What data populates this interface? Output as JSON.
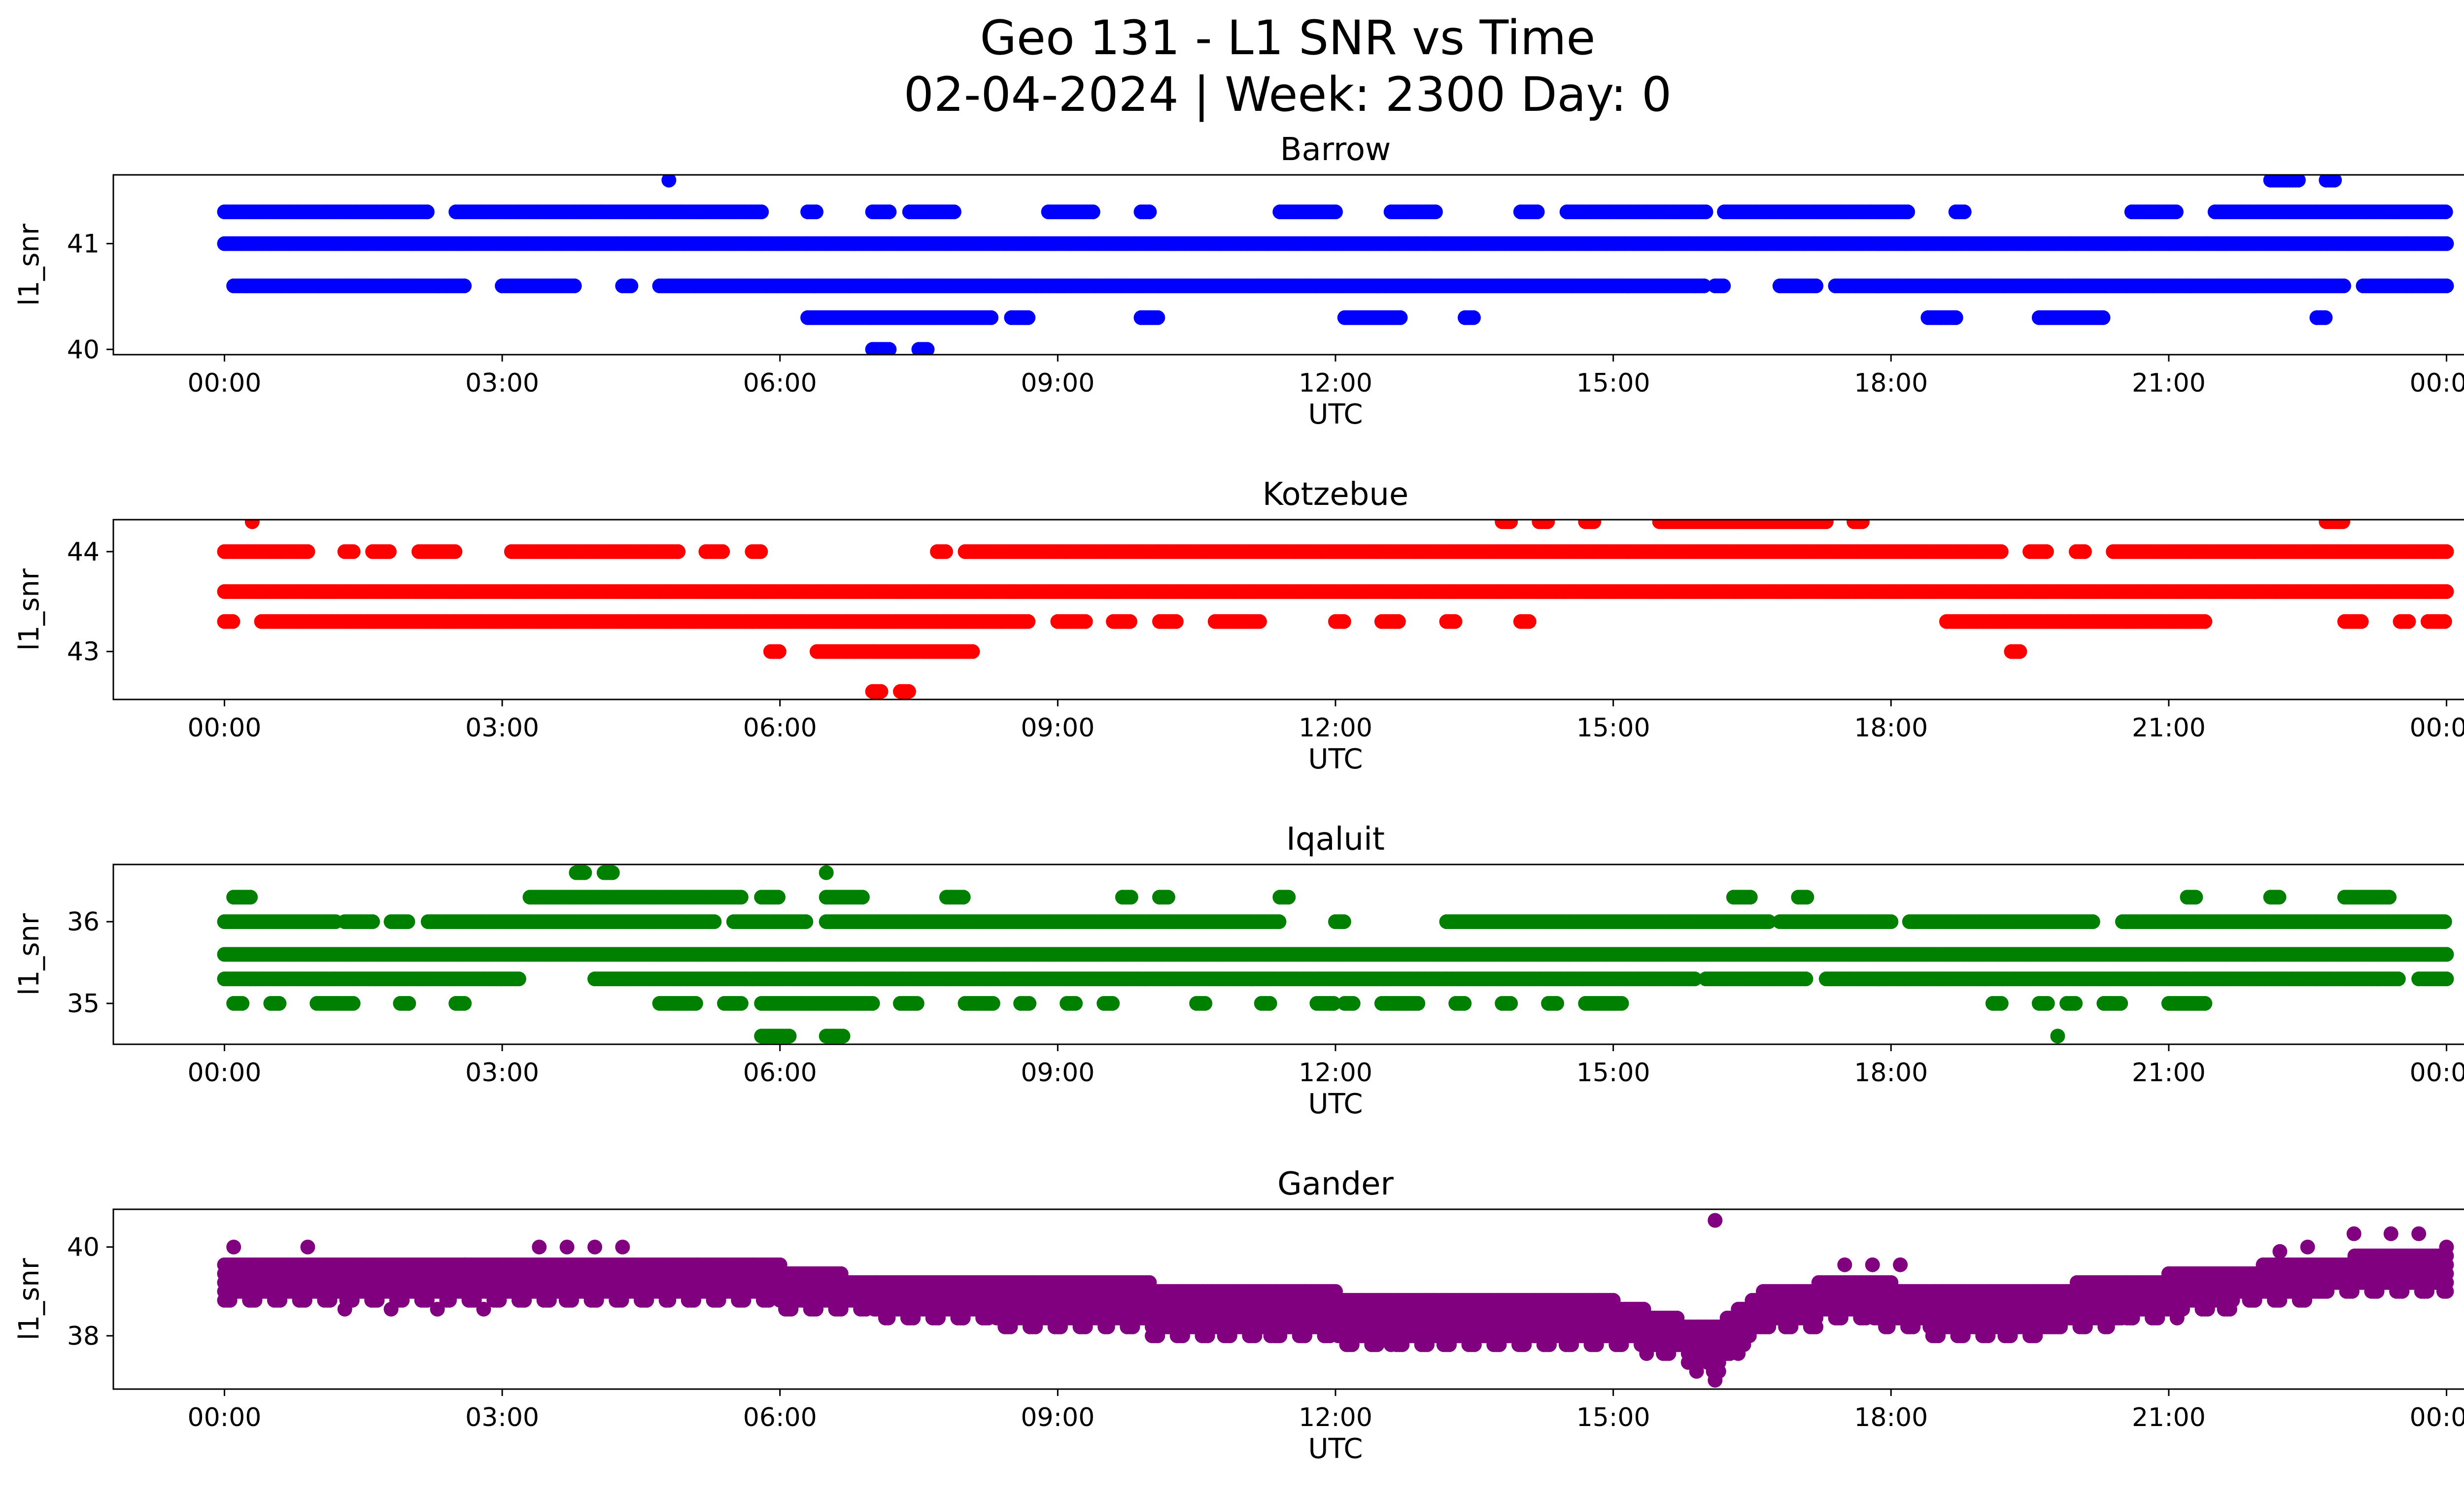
{
  "figure": {
    "title_line1": "Geo 131 - L1 SNR vs Time",
    "title_line2": "02-04-2024 | Week: 2300 Day: 0"
  },
  "chart_data": [
    {
      "type": "scatter",
      "title": "Barrow",
      "xlabel": "UTC",
      "ylabel": "l1_snr",
      "color": "#0000ff",
      "x_unit": "hours UTC",
      "xlim": [
        -1.2,
        25.2
      ],
      "ylim": [
        39.95,
        41.65
      ],
      "xticks": [
        "00:00",
        "03:00",
        "06:00",
        "09:00",
        "12:00",
        "15:00",
        "18:00",
        "21:00",
        "00:00"
      ],
      "yticks": [
        40,
        41
      ],
      "levels": [
        {
          "y": 41.0,
          "segments": [
            [
              0.0,
              24.0
            ]
          ]
        },
        {
          "y": 41.3,
          "segments": [
            [
              0.0,
              2.2
            ],
            [
              2.5,
              5.8
            ],
            [
              6.3,
              6.4
            ],
            [
              7.0,
              7.2
            ],
            [
              7.4,
              7.9
            ],
            [
              8.9,
              9.4
            ],
            [
              9.9,
              10.0
            ],
            [
              11.4,
              12.0
            ],
            [
              12.6,
              13.1
            ],
            [
              14.0,
              14.2
            ],
            [
              14.5,
              16.0
            ],
            [
              16.2,
              18.2
            ],
            [
              18.7,
              18.8
            ],
            [
              20.6,
              21.1
            ],
            [
              21.5,
              24.0
            ]
          ]
        },
        {
          "y": 40.6,
          "segments": [
            [
              0.1,
              2.6
            ],
            [
              3.0,
              3.8
            ],
            [
              4.3,
              4.4
            ],
            [
              4.7,
              16.0
            ],
            [
              16.1,
              16.2
            ],
            [
              16.8,
              17.2
            ],
            [
              17.4,
              22.9
            ],
            [
              23.1,
              24.0
            ]
          ]
        },
        {
          "y": 40.3,
          "segments": [
            [
              6.3,
              8.3
            ],
            [
              8.5,
              8.7
            ],
            [
              9.9,
              10.1
            ],
            [
              12.1,
              12.7
            ],
            [
              13.4,
              13.5
            ],
            [
              18.4,
              18.7
            ],
            [
              19.6,
              20.3
            ],
            [
              22.6,
              22.7
            ]
          ]
        },
        {
          "y": 40.0,
          "segments": [
            [
              7.0,
              7.2
            ],
            [
              7.5,
              7.6
            ]
          ]
        },
        {
          "y": 41.6,
          "segments": [
            [
              4.8,
              4.8
            ],
            [
              22.1,
              22.4
            ],
            [
              22.7,
              22.8
            ]
          ]
        }
      ]
    },
    {
      "type": "scatter",
      "title": "Kotzebue",
      "xlabel": "UTC",
      "ylabel": "l1_snr",
      "color": "#ff0000",
      "x_unit": "hours UTC",
      "xlim": [
        -1.2,
        25.2
      ],
      "ylim": [
        42.52,
        44.32
      ],
      "xticks": [
        "00:00",
        "03:00",
        "06:00",
        "09:00",
        "12:00",
        "15:00",
        "18:00",
        "21:00",
        "00:00"
      ],
      "yticks": [
        43,
        44
      ],
      "levels": [
        {
          "y": 43.6,
          "segments": [
            [
              0.0,
              24.0
            ]
          ]
        },
        {
          "y": 44.0,
          "segments": [
            [
              0.0,
              0.9
            ],
            [
              1.3,
              1.4
            ],
            [
              1.6,
              1.8
            ],
            [
              2.1,
              2.5
            ],
            [
              3.1,
              4.9
            ],
            [
              5.2,
              5.4
            ],
            [
              5.7,
              5.8
            ],
            [
              7.7,
              7.8
            ],
            [
              8.0,
              19.2
            ],
            [
              19.5,
              19.7
            ],
            [
              20.0,
              20.1
            ],
            [
              20.4,
              24.0
            ]
          ]
        },
        {
          "y": 43.3,
          "segments": [
            [
              0.0,
              0.1
            ],
            [
              0.4,
              8.7
            ],
            [
              9.0,
              9.3
            ],
            [
              9.6,
              9.8
            ],
            [
              10.1,
              10.3
            ],
            [
              10.7,
              11.2
            ],
            [
              12.0,
              12.1
            ],
            [
              12.5,
              12.7
            ],
            [
              13.2,
              13.3
            ],
            [
              14.0,
              14.1
            ],
            [
              18.6,
              21.4
            ],
            [
              22.9,
              23.1
            ],
            [
              23.5,
              23.6
            ],
            [
              23.8,
              24.0
            ]
          ]
        },
        {
          "y": 43.0,
          "segments": [
            [
              5.9,
              6.0
            ],
            [
              6.4,
              8.1
            ],
            [
              19.3,
              19.4
            ]
          ]
        },
        {
          "y": 42.6,
          "segments": [
            [
              7.0,
              7.1
            ],
            [
              7.3,
              7.4
            ]
          ]
        },
        {
          "y": 44.3,
          "segments": [
            [
              0.3,
              0.3
            ],
            [
              13.8,
              13.9
            ],
            [
              14.2,
              14.3
            ],
            [
              14.7,
              14.8
            ],
            [
              15.5,
              17.3
            ],
            [
              17.6,
              17.7
            ],
            [
              22.7,
              22.9
            ]
          ]
        }
      ]
    },
    {
      "type": "scatter",
      "title": "Iqaluit",
      "xlabel": "UTC",
      "ylabel": "l1_snr",
      "color": "#008000",
      "x_unit": "hours UTC",
      "xlim": [
        -1.2,
        25.2
      ],
      "ylim": [
        34.5,
        36.7
      ],
      "xticks": [
        "00:00",
        "03:00",
        "06:00",
        "09:00",
        "12:00",
        "15:00",
        "18:00",
        "21:00",
        "00:00"
      ],
      "yticks": [
        35,
        36
      ],
      "levels": [
        {
          "y": 35.6,
          "segments": [
            [
              0.0,
              24.0
            ]
          ]
        },
        {
          "y": 36.0,
          "segments": [
            [
              0.0,
              1.2
            ],
            [
              1.3,
              1.6
            ],
            [
              1.8,
              2.0
            ],
            [
              2.2,
              5.3
            ],
            [
              5.5,
              6.3
            ],
            [
              6.5,
              11.4
            ],
            [
              12.0,
              12.1
            ],
            [
              13.2,
              16.7
            ],
            [
              16.8,
              18.0
            ],
            [
              18.2,
              20.2
            ],
            [
              20.5,
              24.0
            ]
          ]
        },
        {
          "y": 35.3,
          "segments": [
            [
              0.0,
              3.2
            ],
            [
              4.0,
              15.9
            ],
            [
              16.0,
              17.1
            ],
            [
              17.3,
              23.5
            ],
            [
              23.7,
              24.0
            ]
          ]
        },
        {
          "y": 35.0,
          "segments": [
            [
              0.1,
              0.2
            ],
            [
              0.5,
              0.6
            ],
            [
              1.0,
              1.4
            ],
            [
              1.9,
              2.0
            ],
            [
              2.5,
              2.6
            ],
            [
              4.7,
              5.1
            ],
            [
              5.4,
              5.6
            ],
            [
              5.8,
              7.0
            ],
            [
              7.3,
              7.5
            ],
            [
              8.0,
              8.3
            ],
            [
              8.6,
              8.7
            ],
            [
              9.1,
              9.2
            ],
            [
              9.5,
              9.6
            ],
            [
              10.5,
              10.6
            ],
            [
              11.2,
              11.3
            ],
            [
              11.8,
              12.0
            ],
            [
              12.1,
              12.2
            ],
            [
              12.5,
              12.9
            ],
            [
              13.3,
              13.4
            ],
            [
              13.8,
              13.9
            ],
            [
              14.3,
              14.4
            ],
            [
              14.7,
              15.1
            ],
            [
              19.1,
              19.2
            ],
            [
              19.6,
              19.7
            ],
            [
              19.9,
              20.0
            ],
            [
              20.3,
              20.5
            ],
            [
              21.0,
              21.4
            ]
          ]
        },
        {
          "y": 34.6,
          "segments": [
            [
              5.8,
              6.1
            ],
            [
              6.5,
              6.7
            ],
            [
              19.8,
              19.8
            ]
          ]
        },
        {
          "y": 36.3,
          "segments": [
            [
              0.1,
              0.3
            ],
            [
              3.3,
              5.6
            ],
            [
              5.8,
              6.0
            ],
            [
              6.5,
              6.9
            ],
            [
              7.8,
              8.0
            ],
            [
              9.7,
              9.8
            ],
            [
              10.1,
              10.2
            ],
            [
              11.4,
              11.5
            ],
            [
              16.3,
              16.5
            ],
            [
              17.0,
              17.1
            ],
            [
              21.2,
              21.3
            ],
            [
              22.1,
              22.2
            ],
            [
              22.9,
              23.4
            ]
          ]
        },
        {
          "y": 36.6,
          "segments": [
            [
              3.8,
              3.9
            ],
            [
              4.1,
              4.2
            ],
            [
              6.5,
              6.5
            ]
          ]
        }
      ]
    },
    {
      "type": "scatter",
      "title": "Gander",
      "xlabel": "UTC",
      "ylabel": "l1_snr",
      "color": "#800080",
      "x_unit": "hours UTC",
      "xlim": [
        -1.2,
        25.2
      ],
      "ylim": [
        36.8,
        40.85
      ],
      "xticks": [
        "00:00",
        "03:00",
        "06:00",
        "09:00",
        "12:00",
        "15:00",
        "18:00",
        "21:00",
        "00:00"
      ],
      "yticks": [
        38,
        40
      ],
      "band": {
        "profile": [
          [
            0.0,
            39.0,
            39.6
          ],
          [
            3.0,
            39.1,
            39.7
          ],
          [
            6.0,
            38.9,
            39.6
          ],
          [
            7.0,
            38.7,
            39.3
          ],
          [
            9.0,
            38.4,
            39.3
          ],
          [
            12.0,
            38.1,
            39.0
          ],
          [
            13.5,
            38.0,
            38.8
          ],
          [
            15.0,
            38.0,
            38.8
          ],
          [
            15.7,
            37.8,
            38.4
          ],
          [
            16.1,
            37.4,
            38.2
          ],
          [
            16.6,
            38.3,
            39.0
          ],
          [
            17.5,
            38.6,
            39.3
          ],
          [
            19.0,
            38.1,
            39.0
          ],
          [
            20.5,
            38.5,
            39.3
          ],
          [
            22.0,
            39.0,
            39.6
          ],
          [
            24.0,
            39.3,
            40.0
          ]
        ],
        "step": 0.2
      },
      "outliers": [
        [
          0.1,
          40.0
        ],
        [
          0.9,
          40.0
        ],
        [
          3.4,
          40.0
        ],
        [
          3.7,
          40.0
        ],
        [
          4.0,
          40.0
        ],
        [
          4.3,
          40.0
        ],
        [
          2.6,
          39.6
        ],
        [
          1.3,
          38.6
        ],
        [
          1.8,
          38.6
        ],
        [
          2.3,
          38.6
        ],
        [
          2.8,
          38.6
        ],
        [
          16.1,
          40.6
        ],
        [
          16.1,
          37.0
        ],
        [
          15.9,
          37.2
        ],
        [
          12.6,
          37.8
        ],
        [
          11.3,
          38.0
        ],
        [
          23.0,
          40.3
        ],
        [
          23.4,
          40.3
        ],
        [
          23.7,
          40.3
        ],
        [
          22.2,
          39.9
        ],
        [
          22.5,
          40.0
        ],
        [
          17.5,
          39.6
        ],
        [
          17.8,
          39.6
        ],
        [
          18.1,
          39.6
        ]
      ]
    }
  ]
}
